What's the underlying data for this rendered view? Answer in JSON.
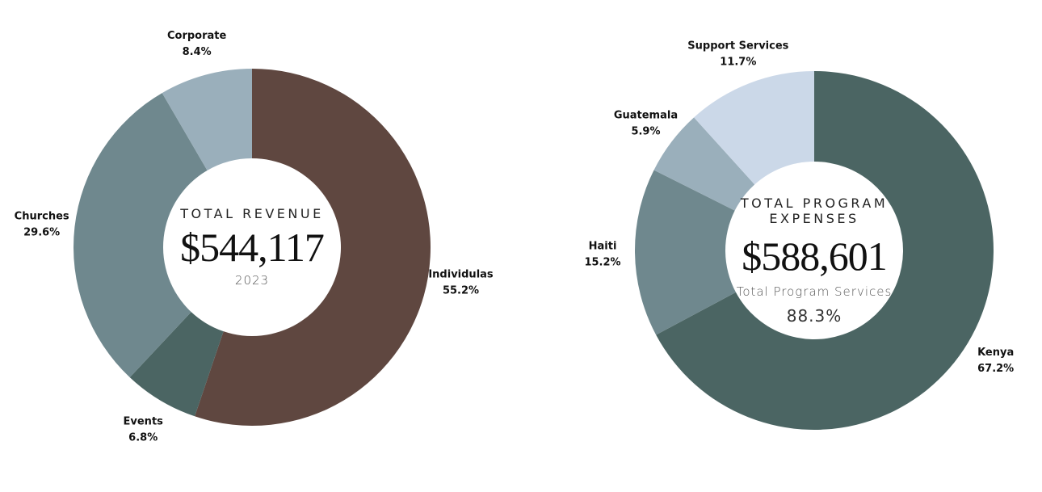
{
  "chart_data": [
    {
      "type": "donut",
      "center_title": "TOTAL REVENUE",
      "center_value": "$544,117",
      "center_note": "2023",
      "categories": [
        "Individulas",
        "Events",
        "Churches",
        "Corporate"
      ],
      "values": [
        55.2,
        6.8,
        29.6,
        8.4
      ],
      "value_labels": [
        "55.2%",
        "6.8%",
        "29.6%",
        "8.4%"
      ],
      "colors": [
        "#5f4740",
        "#4b6563",
        "#6f888e",
        "#9aafbb"
      ]
    },
    {
      "type": "donut",
      "center_title": "TOTAL PROGRAM EXPENSES",
      "center_value": "$588,601",
      "center_note": "Total Program Services",
      "center_note_value": "88.3%",
      "categories": [
        "Kenya",
        "Haiti",
        "Guatemala",
        "Support Services"
      ],
      "values": [
        67.2,
        15.2,
        5.9,
        11.7
      ],
      "value_labels": [
        "67.2%",
        "15.2%",
        "5.9%",
        "11.7%"
      ],
      "colors": [
        "#4b6563",
        "#6f888e",
        "#9aafbb",
        "#cbd8e8"
      ]
    }
  ]
}
